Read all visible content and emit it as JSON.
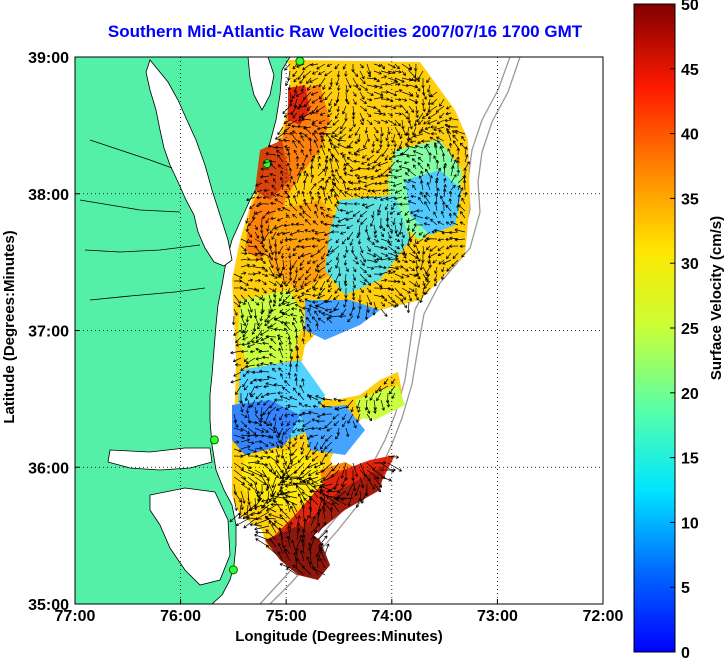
{
  "title": "Southern Mid-Atlantic Raw Velocities 2007/07/16 1700 GMT",
  "map": {
    "xlabel": "Longitude (Degrees:Minutes)",
    "ylabel": "Latitude (Degrees:Minutes)",
    "x_ticks": [
      "77:00",
      "76:00",
      "75:00",
      "74:00",
      "73:00",
      "72:00"
    ],
    "x_tick_values": [
      -77,
      -76,
      -75,
      -74,
      -73,
      -72
    ],
    "y_ticks": [
      "39:00",
      "38:00",
      "37:00",
      "36:00",
      "35:00"
    ],
    "y_tick_values": [
      39,
      38,
      37,
      36,
      35
    ],
    "lon_range": [
      -77,
      -72
    ],
    "lat_range": [
      35,
      39
    ],
    "grid": "dotted",
    "land_color": "#55f0a8",
    "stations": [
      {
        "lon": -74.87,
        "lat": 38.97
      },
      {
        "lon": -75.18,
        "lat": 38.22
      },
      {
        "lon": -75.68,
        "lat": 36.2
      },
      {
        "lon": -75.5,
        "lat": 35.25
      }
    ]
  },
  "colorbar": {
    "label": "Surface Velocity (cm/s)",
    "ticks": [
      "50",
      "45",
      "40",
      "35",
      "30",
      "25",
      "20",
      "15",
      "10",
      "5",
      "0"
    ],
    "tick_values": [
      50,
      45,
      40,
      35,
      30,
      25,
      20,
      15,
      10,
      5,
      0
    ],
    "range": [
      0,
      50
    ],
    "colormap": "jet"
  }
}
